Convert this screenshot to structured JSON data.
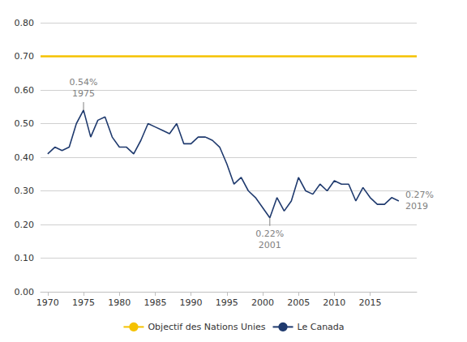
{
  "chart_data": {
    "type": "line",
    "x": [
      1970,
      1971,
      1972,
      1973,
      1974,
      1975,
      1976,
      1977,
      1978,
      1979,
      1980,
      1981,
      1982,
      1983,
      1984,
      1985,
      1986,
      1987,
      1988,
      1989,
      1990,
      1991,
      1992,
      1993,
      1994,
      1995,
      1996,
      1997,
      1998,
      1999,
      2000,
      2001,
      2002,
      2003,
      2004,
      2005,
      2006,
      2007,
      2008,
      2009,
      2010,
      2011,
      2012,
      2013,
      2014,
      2015,
      2016,
      2017,
      2018,
      2019
    ],
    "series": [
      {
        "name": "Le Canada",
        "color": "#1f3a6e",
        "values": [
          0.41,
          0.43,
          0.42,
          0.43,
          0.5,
          0.54,
          0.46,
          0.51,
          0.52,
          0.46,
          0.43,
          0.43,
          0.41,
          0.45,
          0.5,
          0.49,
          0.48,
          0.47,
          0.5,
          0.44,
          0.44,
          0.46,
          0.46,
          0.45,
          0.43,
          0.38,
          0.32,
          0.34,
          0.3,
          0.28,
          0.25,
          0.22,
          0.28,
          0.24,
          0.27,
          0.34,
          0.3,
          0.29,
          0.32,
          0.3,
          0.33,
          0.32,
          0.32,
          0.27,
          0.31,
          0.28,
          0.26,
          0.26,
          0.28,
          0.27
        ]
      }
    ],
    "reference_lines": [
      {
        "name": "Objectif des Nations Unies",
        "value": 0.7,
        "color": "#f5c200"
      }
    ],
    "annotations": [
      {
        "text": "0.54%\n1975",
        "x": 1975,
        "y": 0.54,
        "color": "#808080"
      },
      {
        "text": "0.22%\n2001",
        "x": 2001,
        "y": 0.22,
        "color": "#808080"
      },
      {
        "text": "0.27%\n2019",
        "x": 2019,
        "y": 0.27,
        "color": "#808080"
      }
    ],
    "xlim": [
      1969.0,
      2021.5
    ],
    "xticks": [
      1970,
      1975,
      1980,
      1985,
      1990,
      1995,
      2000,
      2005,
      2010,
      2015
    ],
    "ylim": [
      0.0,
      0.8
    ],
    "yticks": [
      {
        "value": 0.0,
        "label": "0.00"
      },
      {
        "value": 0.1,
        "label": "0.10"
      },
      {
        "value": 0.2,
        "label": "0.20"
      },
      {
        "value": 0.3,
        "label": "0.30"
      },
      {
        "value": 0.4,
        "label": "0.40"
      },
      {
        "value": 0.5,
        "label": "0.50"
      },
      {
        "value": 0.6,
        "label": "0.60"
      },
      {
        "value": 0.7,
        "label": "0.70"
      },
      {
        "value": 0.8,
        "label": "0.80"
      }
    ],
    "grid": true,
    "legend": "bottom"
  }
}
